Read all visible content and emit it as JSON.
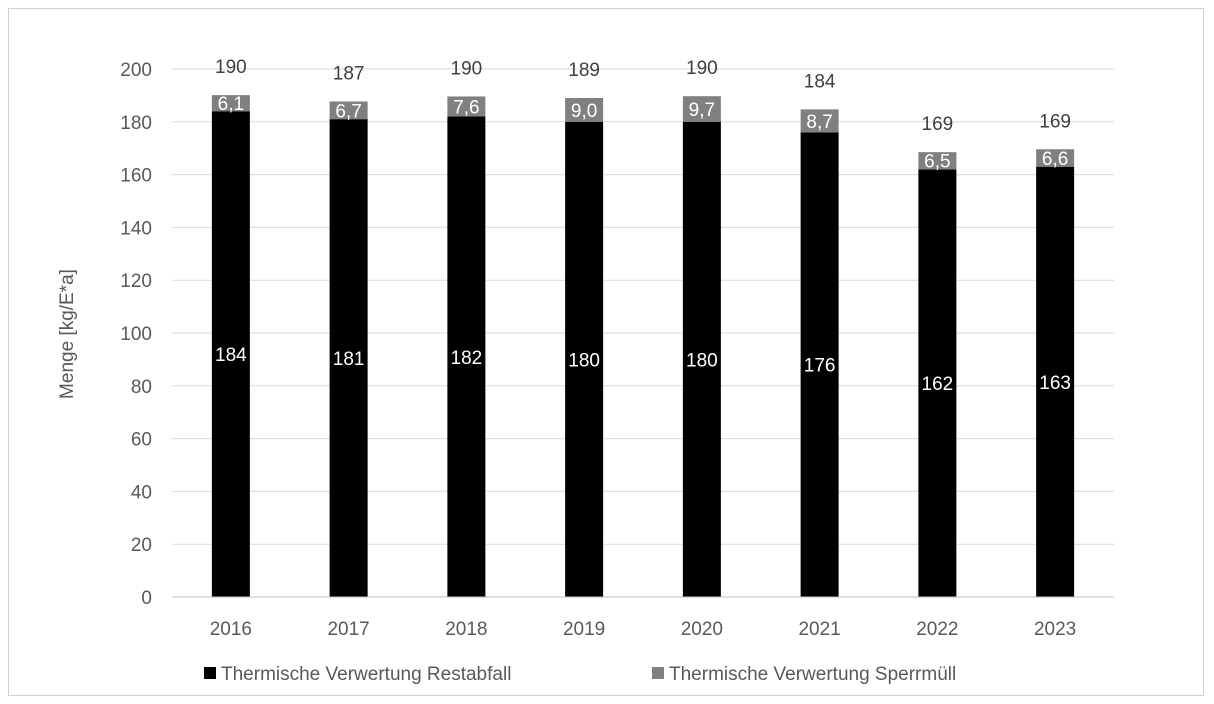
{
  "chart_data": {
    "type": "bar",
    "stacked": true,
    "categories": [
      "2016",
      "2017",
      "2018",
      "2019",
      "2020",
      "2021",
      "2022",
      "2023"
    ],
    "series": [
      {
        "name": "Thermische Verwertung Restabfall",
        "color": "#000000",
        "values": [
          184,
          181,
          182,
          180,
          180,
          176,
          162,
          163
        ],
        "labels": [
          "184",
          "181",
          "182",
          "180",
          "180",
          "176",
          "162",
          "163"
        ]
      },
      {
        "name": "Thermische Verwertung Sperrmüll",
        "color": "#808080",
        "values": [
          6.1,
          6.7,
          7.6,
          9.0,
          9.7,
          8.7,
          6.5,
          6.6
        ],
        "labels": [
          "6,1",
          "6,7",
          "7,6",
          "9,0",
          "9,7",
          "8,7",
          "6,5",
          "6,6"
        ]
      }
    ],
    "totals": [
      "190",
      "187",
      "190",
      "189",
      "190",
      "184",
      "169",
      "169"
    ],
    "title": "",
    "xlabel": "",
    "ylabel": "Menge [kg/E*a]",
    "ylim": [
      0,
      200
    ],
    "yticks": [
      0,
      20,
      40,
      60,
      80,
      100,
      120,
      140,
      160,
      180,
      200
    ],
    "grid": true,
    "legend": "bottom"
  }
}
